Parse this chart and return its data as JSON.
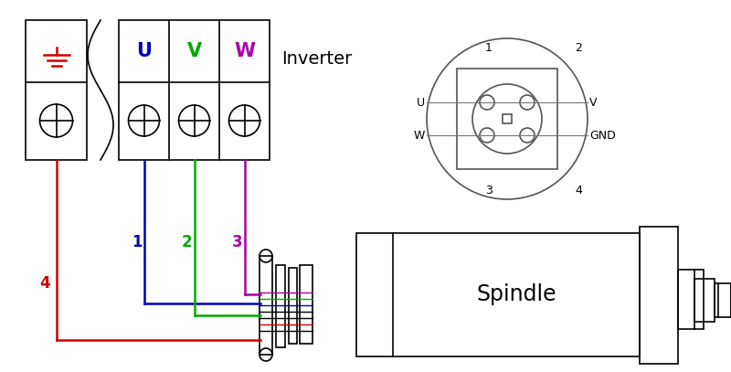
{
  "bg_color": "#ffffff",
  "inverter_label": "Inverter",
  "spindle_label": "Spindle",
  "wire_colors": {
    "U": "#0000bb",
    "V": "#00aa00",
    "W": "#aa00aa",
    "GND": "#cc0000"
  }
}
